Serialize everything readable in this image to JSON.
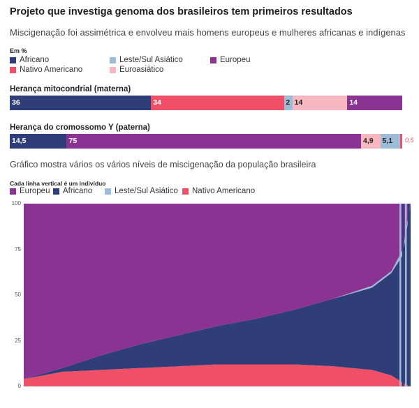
{
  "title": "Projeto que investiga genoma dos brasileiros tem primeiros resultados",
  "subtitle": "Miscigenação foi assimétrica e envolveu mais homens europeus e mulheres africanas e indígenas",
  "unit": "Em %",
  "legend": [
    {
      "label": "Africano",
      "color": "#2f3e78"
    },
    {
      "label": "Leste/Sul Asiático",
      "color": "#9dbcd8"
    },
    {
      "label": "Europeu",
      "color": "#8b3393"
    },
    {
      "label": "Nativo Americano",
      "color": "#f05067"
    },
    {
      "label": "Euroasiático",
      "color": "#f7b7c0"
    }
  ],
  "chart_data": [
    {
      "type": "bar",
      "title": "Herança mitocondrial (materna)",
      "segments": [
        {
          "name": "Africano",
          "value": 36,
          "label": "36"
        },
        {
          "name": "Nativo Americano",
          "value": 34,
          "label": "34"
        },
        {
          "name": "Leste/Sul Asiático",
          "value": 2,
          "label": "2"
        },
        {
          "name": "Euroasiático",
          "value": 14,
          "label": "14"
        },
        {
          "name": "Europeu",
          "value": 14,
          "label": "14"
        }
      ]
    },
    {
      "type": "bar",
      "title": "Herança do cromossomo Y (paterna)",
      "segments": [
        {
          "name": "Africano",
          "value": 14.5,
          "label": "14,5"
        },
        {
          "name": "Europeu",
          "value": 75,
          "label": "75"
        },
        {
          "name": "Euroasiático",
          "value": 4.9,
          "label": "4,9"
        },
        {
          "name": "Leste/Sul Asiático",
          "value": 5.1,
          "label": "5,1"
        },
        {
          "name": "Nativo Americano",
          "value": 0.5,
          "label": "0,5"
        }
      ]
    },
    {
      "type": "area",
      "title": "Gráfico mostra vários os vários níveis de miscigenação da população brasileira",
      "note": "Cada linha vertical é um indivíduo",
      "legend": [
        {
          "label": "Europeu",
          "color": "#8b3393"
        },
        {
          "label": "Africano",
          "color": "#2f3e78"
        },
        {
          "label": "Leste/Sul Asiático",
          "color": "#9dbcd8"
        },
        {
          "label": "Nativo Americano",
          "color": "#f05067"
        }
      ],
      "stack_order": [
        "Nativo Americano",
        "Africano",
        "Leste/Sul Asiático",
        "Europeu"
      ],
      "ylim": [
        0,
        100
      ],
      "yticks": [
        "0",
        "25",
        "50",
        "75",
        "100"
      ],
      "x": [
        0,
        10,
        20,
        30,
        40,
        50,
        60,
        70,
        80,
        90,
        95,
        98,
        100
      ],
      "series": [
        {
          "name": "Nativo Americano",
          "values": [
            4,
            8,
            9,
            10,
            11,
            12,
            12,
            12,
            11,
            9,
            6,
            2,
            0
          ]
        },
        {
          "name": "Africano",
          "values": [
            0,
            2,
            8,
            13,
            17,
            21,
            25,
            30,
            37,
            45,
            56,
            70,
            100
          ]
        },
        {
          "name": "Leste/Sul Asiático",
          "values": [
            0,
            0,
            0,
            0,
            0,
            0,
            0,
            0,
            0,
            1,
            1,
            3,
            0
          ]
        },
        {
          "name": "Europeu",
          "values": [
            96,
            90,
            83,
            77,
            72,
            67,
            63,
            58,
            52,
            45,
            37,
            25,
            0
          ]
        }
      ]
    }
  ]
}
